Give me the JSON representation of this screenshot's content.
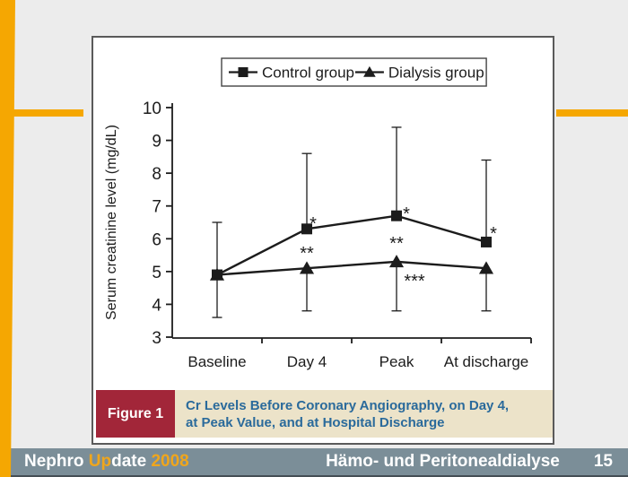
{
  "caption": {
    "figure_label": "Figure 1",
    "title_line1": "Cr Levels Before Coronary Angiography, on Day 4,",
    "title_line2": "at Peak Value, and at Hospital Discharge"
  },
  "footer": {
    "brand_parts": [
      {
        "text": "Nephro ",
        "color": "#ffffff"
      },
      {
        "text": "Up",
        "color": "#f0a61c"
      },
      {
        "text": "date ",
        "color": "#ffffff"
      },
      {
        "text": "2008",
        "color": "#f0a61c"
      }
    ],
    "topic": "Hämo- und Peritonealdialyse",
    "page": "15"
  },
  "colors": {
    "accent_orange": "#f5a702",
    "footer_bar": "#7b8e98",
    "figure_box_red": "#a22639",
    "caption_bg": "#ece3c9",
    "caption_text_blue": "#2a6a9b",
    "chart_ink": "#1c1c1c"
  },
  "chart_data": {
    "type": "line",
    "title": "",
    "xlabel": "",
    "ylabel": "Serum creatinine level (mg/dL)",
    "categories": [
      "Baseline",
      "Day 4",
      "Peak",
      "At discharge"
    ],
    "ylim": [
      3,
      10
    ],
    "yticks": [
      3,
      4,
      5,
      6,
      7,
      8,
      9,
      10
    ],
    "grid": false,
    "legend_position": "top",
    "series": [
      {
        "name": "Control group",
        "marker": "square",
        "values": [
          4.9,
          6.3,
          6.7,
          5.9
        ],
        "err_top": [
          6.5,
          8.6,
          9.4,
          8.4
        ],
        "err_bottom": [
          3.6,
          null,
          null,
          null
        ]
      },
      {
        "name": "Dialysis group",
        "marker": "triangle",
        "values": [
          4.9,
          5.1,
          5.3,
          5.1
        ],
        "err_top": [
          null,
          null,
          null,
          null
        ],
        "err_bottom": [
          null,
          3.8,
          3.8,
          3.8
        ]
      }
    ],
    "annotations": [
      {
        "text": "*",
        "category_index": 1,
        "value": 6.5,
        "dx": 7
      },
      {
        "text": "**",
        "category_index": 1,
        "value": 5.6,
        "dx": 0
      },
      {
        "text": "*",
        "category_index": 2,
        "value": 6.8,
        "dx": 11
      },
      {
        "text": "**",
        "category_index": 2,
        "value": 5.9,
        "dx": 0
      },
      {
        "text": "***",
        "category_index": 2,
        "value": 4.75,
        "dx": 20
      },
      {
        "text": "*",
        "category_index": 3,
        "value": 6.2,
        "dx": 8
      }
    ]
  }
}
